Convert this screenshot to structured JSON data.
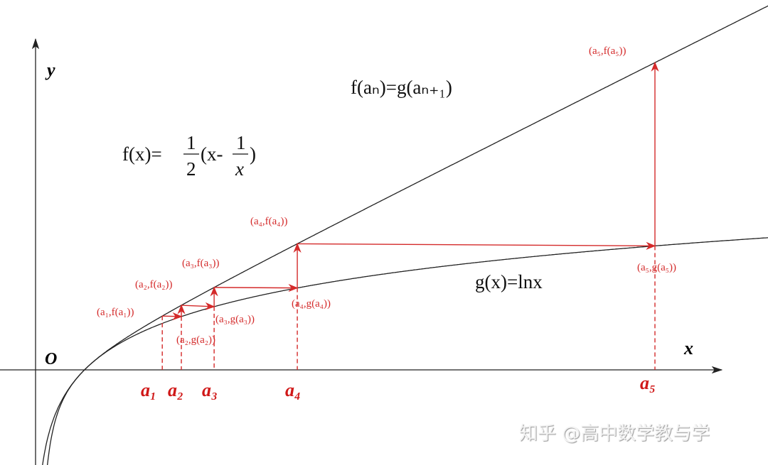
{
  "chart_data": {
    "type": "line",
    "axes": {
      "x_label": "x",
      "y_label": "y",
      "origin_label": "O"
    },
    "curves": [
      {
        "name": "f(x)=1/2(x-1/x)",
        "formula": "0.5*(x-1/x)",
        "color": "#222222"
      },
      {
        "name": "g(x)=lnx",
        "formula": "ln(x)",
        "color": "#222222"
      }
    ],
    "sequence_color": "#d42a2a",
    "a_values": [
      2.59,
      2.98,
      3.65,
      5.35,
      12.66
    ],
    "a_labels": [
      "a₁",
      "a₂",
      "a₃",
      "a₄",
      "a₅"
    ],
    "f_point_labels": [
      "(a₁,f(a₁))",
      "(a₂,f(a₂))",
      "(a₃,f(a₃))",
      "(a₄,f(a₄))",
      "(a₅,f(a₅))"
    ],
    "g_point_labels": [
      "(a₂,g(a₂))",
      "(a₃,g(a₃))",
      "(a₄,g(a₄))",
      "(a₅,g(a₅))"
    ],
    "recurrence": "f(aₙ)=g(aₙ₊₁)",
    "f_formula": {
      "lhs": "f(x)=",
      "num": "1",
      "den": "2",
      "mid": "(x-",
      "num2": "1",
      "den2": "x",
      "end": ")"
    },
    "g_formula": "g(x)=lnx"
  },
  "watermark": "知乎 @高中数学教与学"
}
